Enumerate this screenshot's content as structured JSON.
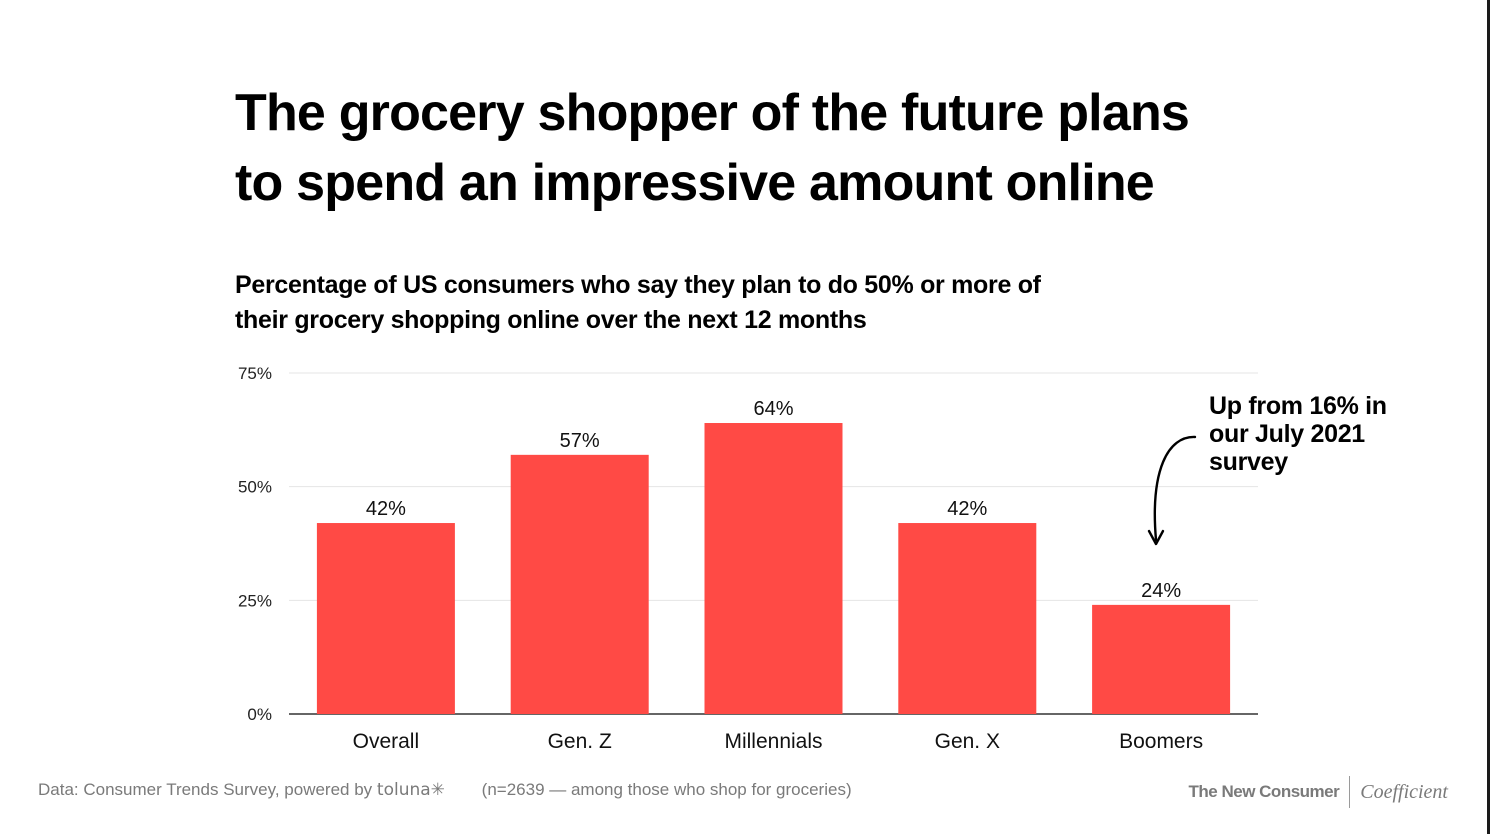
{
  "title": {
    "line1": "The grocery shopper of the future plans",
    "line2": "to spend an impressive amount online"
  },
  "chart_data": {
    "type": "bar",
    "title": "Percentage of US consumers who say they plan to do 50% or more of their grocery shopping online over the next 12 months",
    "subtitle_lines": [
      "Percentage of US consumers who say they plan to do 50% or more of",
      "their grocery shopping online over the next 12 months"
    ],
    "categories": [
      "Overall",
      "Gen. Z",
      "Millennials",
      "Gen. X",
      "Boomers"
    ],
    "values": [
      42,
      57,
      64,
      42,
      24
    ],
    "value_labels": [
      "42%",
      "57%",
      "64%",
      "42%",
      "24%"
    ],
    "ylim": [
      0,
      75
    ],
    "yticks": [
      0,
      25,
      50,
      75
    ],
    "ytick_labels": [
      "0%",
      "25%",
      "50%",
      "75%"
    ],
    "xlabel": "",
    "ylabel": "",
    "grid": true,
    "legend": "none",
    "bar_color": "#ff4a45",
    "annotation": {
      "lines": [
        "Up from 16% in",
        "our July 2021",
        "survey"
      ],
      "target_category": "Boomers"
    }
  },
  "footer": {
    "source": "Data: Consumer Trends Survey, powered by",
    "source_logo": "toluna✳",
    "note": "(n=2639 — among those who shop for groceries)"
  },
  "brands": {
    "primary": "The New Consumer",
    "secondary": "Coefficient"
  },
  "colors": {
    "bar": "#ff4a45",
    "text": "#000000",
    "muted": "#7a7a7a",
    "grid": "#e4e4e4",
    "axis": "#333333"
  }
}
